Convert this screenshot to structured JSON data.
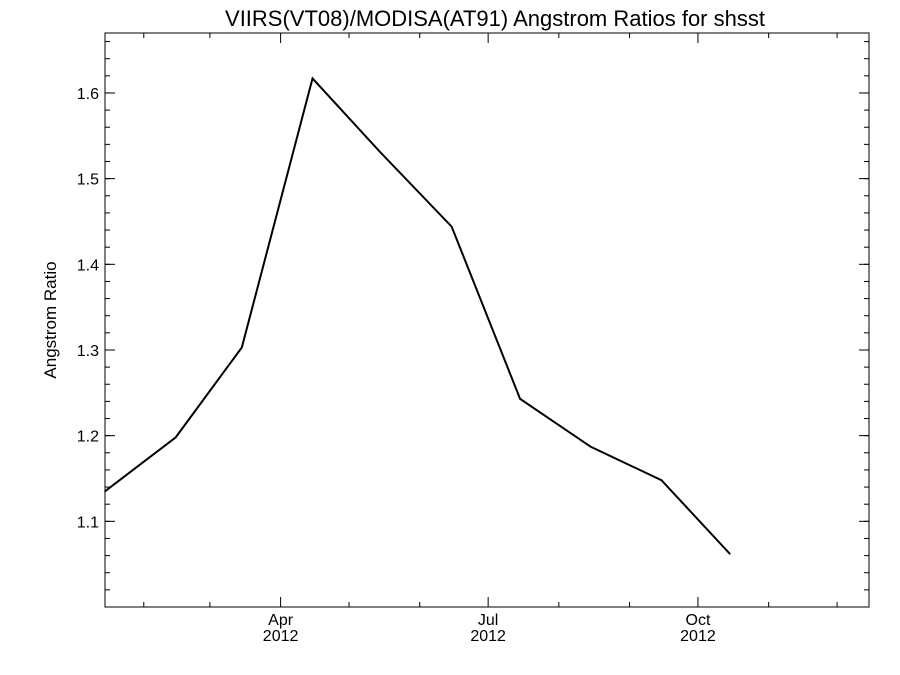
{
  "chart_data": {
    "type": "line",
    "title": "VIIRS(VT08)/MODISA(AT91)  Angstrom Ratios for shsst",
    "xlabel": "",
    "ylabel": "Angstrom Ratio",
    "x_range": [
      "2012-01-15",
      "2012-12-15"
    ],
    "ylim": [
      1.0,
      1.67
    ],
    "y_ticks": [
      1.1,
      1.2,
      1.3,
      1.4,
      1.5,
      1.6
    ],
    "y_tick_labels": [
      "1.1",
      "1.2",
      "1.3",
      "1.4",
      "1.5",
      "1.6"
    ],
    "x_major_ticks": [
      {
        "date": "2012-04-01",
        "month": "Apr",
        "year": "2012"
      },
      {
        "date": "2012-07-01",
        "month": "Jul",
        "year": "2012"
      },
      {
        "date": "2012-10-01",
        "month": "Oct",
        "year": "2012"
      }
    ],
    "x_minor_ticks": [
      "2012-02-01",
      "2012-03-01",
      "2012-05-01",
      "2012-06-01",
      "2012-08-01",
      "2012-09-01",
      "2012-11-01",
      "2012-12-01"
    ],
    "grid": false,
    "series": [
      {
        "color": "#000000",
        "points": [
          {
            "x": "2012-01-15",
            "y": 1.135
          },
          {
            "x": "2012-02-15",
            "y": 1.198
          },
          {
            "x": "2012-03-15",
            "y": 1.303
          },
          {
            "x": "2012-04-15",
            "y": 1.617
          },
          {
            "x": "2012-05-15",
            "y": 1.53
          },
          {
            "x": "2012-06-15",
            "y": 1.444
          },
          {
            "x": "2012-07-15",
            "y": 1.243
          },
          {
            "x": "2012-08-15",
            "y": 1.187
          },
          {
            "x": "2012-09-15",
            "y": 1.148
          },
          {
            "x": "2012-10-15",
            "y": 1.062
          }
        ]
      }
    ]
  }
}
